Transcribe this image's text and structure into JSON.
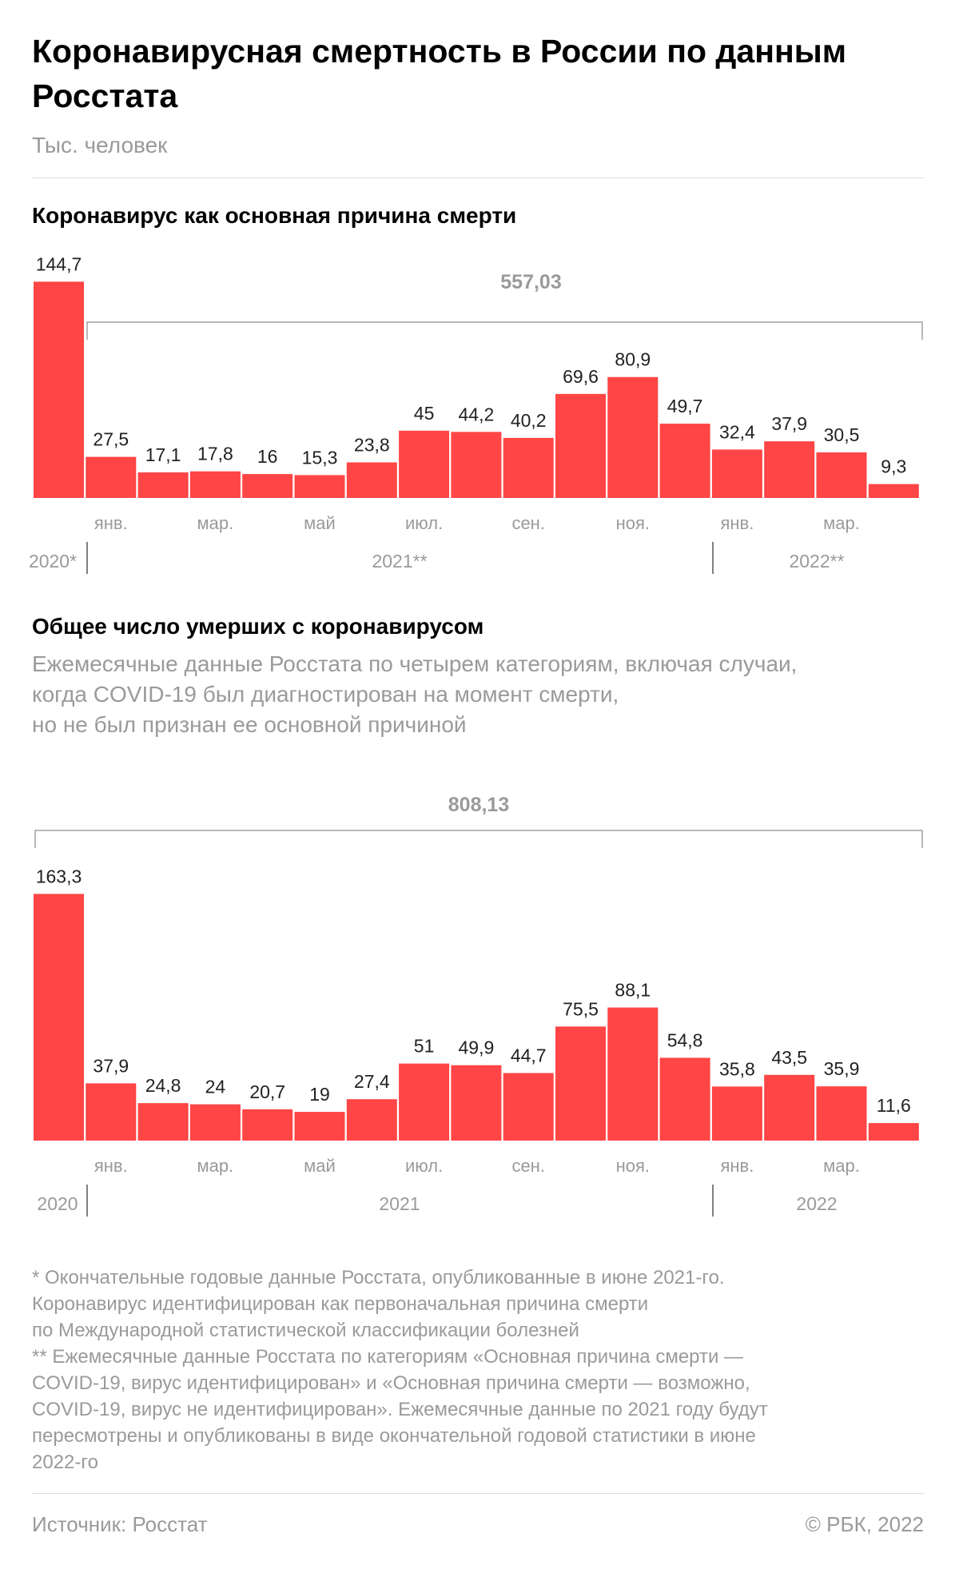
{
  "title": "Коронавирусная смертность в России по данным Росстата",
  "unit": "Тыс. человек",
  "chart_data": [
    {
      "type": "bar",
      "title": "Коронавирус как основная причина смерти",
      "values": [
        144.7,
        27.5,
        17.1,
        17.8,
        16,
        15.3,
        23.8,
        45,
        44.2,
        40.2,
        69.6,
        80.9,
        49.7,
        32.4,
        37.9,
        30.5,
        9.3
      ],
      "value_labels": [
        "144,7",
        "27,5",
        "17,1",
        "17,8",
        "16",
        "15,3",
        "23,8",
        "45",
        "44,2",
        "40,2",
        "69,6",
        "80,9",
        "49,7",
        "32,4",
        "37,9",
        "30,5",
        "9,3"
      ],
      "month_labels": [
        "",
        "янв.",
        "",
        "мар.",
        "",
        "май",
        "",
        "июл.",
        "",
        "сен.",
        "",
        "ноя.",
        "",
        "янв.",
        "",
        "мар.",
        ""
      ],
      "year_labels": [
        "2020*",
        "2021**",
        "2022**"
      ],
      "total_label": "557,03",
      "bar_color": "#ff4545"
    },
    {
      "type": "bar",
      "title": "Общее число умерших с коронавирусом",
      "values": [
        163.3,
        37.9,
        24.8,
        24,
        20.7,
        19,
        27.4,
        51,
        49.9,
        44.7,
        75.5,
        88.1,
        54.8,
        35.8,
        43.5,
        35.9,
        11.6
      ],
      "value_labels": [
        "163,3",
        "37,9",
        "24,8",
        "24",
        "20,7",
        "19",
        "27,4",
        "51",
        "49,9",
        "44,7",
        "75,5",
        "88,1",
        "54,8",
        "35,8",
        "43,5",
        "35,9",
        "11,6"
      ],
      "month_labels": [
        "",
        "янв.",
        "",
        "мар.",
        "",
        "май",
        "",
        "июл.",
        "",
        "сен.",
        "",
        "ноя.",
        "",
        "янв.",
        "",
        "мар.",
        ""
      ],
      "year_labels": [
        "2020",
        "2021",
        "2022"
      ],
      "total_label": "808,13",
      "bar_color": "#ff4545"
    }
  ],
  "description": [
    "Ежемесячные данные Росстата по четырем категориям, включая случаи,",
    "когда COVID-19 был диагностирован на момент смерти,",
    "но не был признан ее основной причиной"
  ],
  "notes": [
    "* Окончательные годовые данные Росстата, опубликованные в июне 2021-го.",
    "Коронавирус идентифицирован как первоначальная причина смерти",
    "по Международной статистической классификации болезней",
    "** Ежемесячные данные Росстата по категориям «Основная причина смерти —",
    "COVID-19, вирус идентифицирован» и «Основная причина смерти  — возможно,",
    "COVID-19, вирус не идентифицирован». Ежемесячные данные по 2021 году будут",
    "пересмотрены и опубликованы в виде окончательной годовой статистики в июне",
    "2022-го"
  ],
  "source": "Источник: Росстат",
  "copyright": "© РБК, 2022"
}
